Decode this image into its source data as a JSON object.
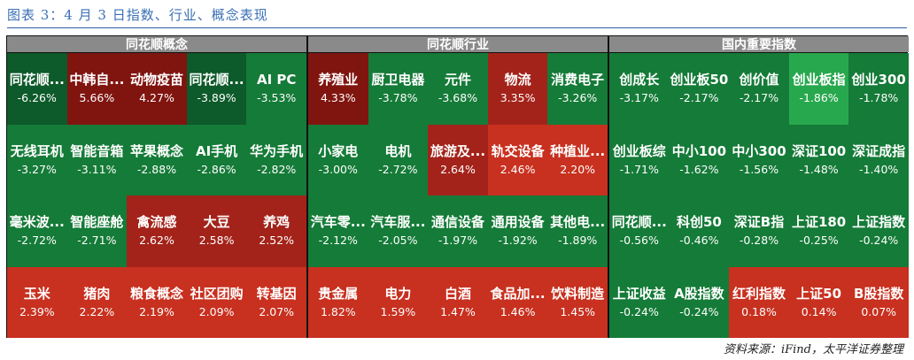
{
  "page_title": "图表 3：4 月 3 日指数、行业、概念表现",
  "source": "资料来源：iFind，太平洋证券整理",
  "colors": {
    "red_dark": "#801510",
    "red_mid": "#a3231a",
    "red_bright": "#c8301f",
    "green_dark": "#0d5a2a",
    "green_mid": "#157b38",
    "green_light": "#28a84e",
    "header": "#8a8a8a"
  },
  "chart_data": {
    "type": "heatmap",
    "sections": [
      {
        "title": "同花顺概念",
        "tiles": [
          {
            "name": "同花顺...",
            "value": "-6.26%"
          },
          {
            "name": "中韩自...",
            "value": "5.66%"
          },
          {
            "name": "动物疫苗",
            "value": "4.27%"
          },
          {
            "name": "同花顺...",
            "value": "-3.89%"
          },
          {
            "name": "AI PC",
            "value": "-3.53%"
          },
          {
            "name": "无线耳机",
            "value": "-3.27%"
          },
          {
            "name": "智能音箱",
            "value": "-3.11%"
          },
          {
            "name": "苹果概念",
            "value": "-2.88%"
          },
          {
            "name": "AI手机",
            "value": "-2.86%"
          },
          {
            "name": "华为手机",
            "value": "-2.82%"
          },
          {
            "name": "毫米波...",
            "value": "-2.72%"
          },
          {
            "name": "智能座舱",
            "value": "-2.71%"
          },
          {
            "name": "禽流感",
            "value": "2.62%"
          },
          {
            "name": "大豆",
            "value": "2.58%"
          },
          {
            "name": "养鸡",
            "value": "2.52%"
          },
          {
            "name": "玉米",
            "value": "2.39%"
          },
          {
            "name": "猪肉",
            "value": "2.22%"
          },
          {
            "name": "粮食概念",
            "value": "2.19%"
          },
          {
            "name": "社区团购",
            "value": "2.09%"
          },
          {
            "name": "转基因",
            "value": "2.07%"
          }
        ]
      },
      {
        "title": "同花顺行业",
        "tiles": [
          {
            "name": "养殖业",
            "value": "4.33%"
          },
          {
            "name": "厨卫电器",
            "value": "-3.78%"
          },
          {
            "name": "元件",
            "value": "-3.68%"
          },
          {
            "name": "物流",
            "value": "3.35%"
          },
          {
            "name": "消费电子",
            "value": "-3.26%"
          },
          {
            "name": "小家电",
            "value": "-3.00%"
          },
          {
            "name": "电机",
            "value": "-2.72%"
          },
          {
            "name": "旅游及...",
            "value": "2.64%"
          },
          {
            "name": "轨交设备",
            "value": "2.46%"
          },
          {
            "name": "种植业...",
            "value": "2.20%"
          },
          {
            "name": "汽车零...",
            "value": "-2.12%"
          },
          {
            "name": "汽车服...",
            "value": "-2.05%"
          },
          {
            "name": "通信设备",
            "value": "-1.97%"
          },
          {
            "name": "通用设备",
            "value": "-1.92%"
          },
          {
            "name": "其他电...",
            "value": "-1.89%"
          },
          {
            "name": "贵金属",
            "value": "1.82%"
          },
          {
            "name": "电力",
            "value": "1.59%"
          },
          {
            "name": "白酒",
            "value": "1.47%"
          },
          {
            "name": "食品加...",
            "value": "1.46%"
          },
          {
            "name": "饮料制造",
            "value": "1.45%"
          }
        ]
      },
      {
        "title": "国内重要指数",
        "tiles": [
          {
            "name": "创成长",
            "value": "-3.17%"
          },
          {
            "name": "创业板50",
            "value": "-2.17%"
          },
          {
            "name": "创价值",
            "value": "-2.17%"
          },
          {
            "name": "创业板指",
            "value": "-1.86%"
          },
          {
            "name": "创业300",
            "value": "-1.78%"
          },
          {
            "name": "创业板综",
            "value": "-1.71%"
          },
          {
            "name": "中小100",
            "value": "-1.62%"
          },
          {
            "name": "中小300",
            "value": "-1.56%"
          },
          {
            "name": "深证100",
            "value": "-1.48%"
          },
          {
            "name": "深证成指",
            "value": "-1.40%"
          },
          {
            "name": "同花顺...",
            "value": "-0.56%"
          },
          {
            "name": "科创50",
            "value": "-0.46%"
          },
          {
            "name": "深证B指",
            "value": "-0.28%"
          },
          {
            "name": "上证180",
            "value": "-0.25%"
          },
          {
            "name": "上证指数",
            "value": "-0.24%"
          },
          {
            "name": "上证收益",
            "value": "-0.24%"
          },
          {
            "name": "A股指数",
            "value": "-0.24%"
          },
          {
            "name": "红利指数",
            "value": "0.18%"
          },
          {
            "name": "上证50",
            "value": "0.14%"
          },
          {
            "name": "B股指数",
            "value": "0.07%"
          }
        ]
      }
    ]
  }
}
